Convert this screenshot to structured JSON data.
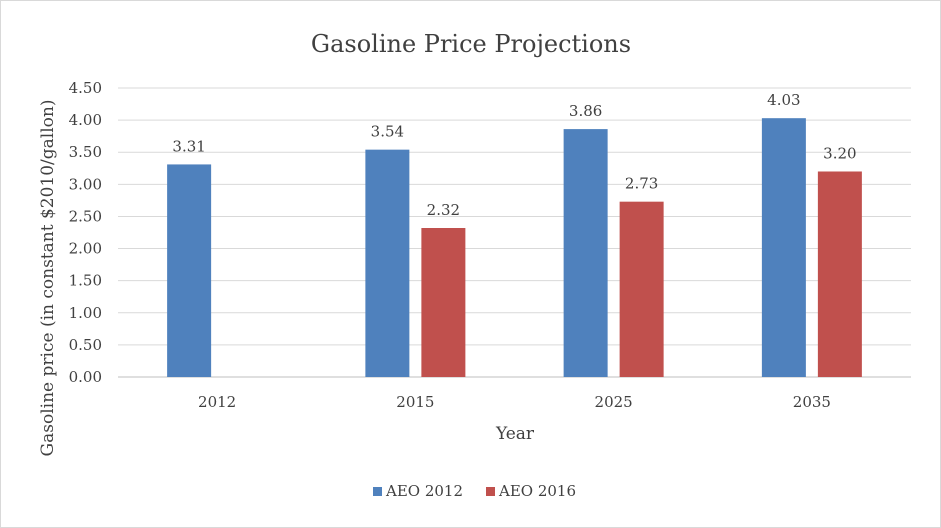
{
  "chart_data": {
    "type": "bar",
    "title": "Gasoline Price Projections",
    "xlabel": "Year",
    "ylabel": "Gasoline price (in constant $2010/gallon)",
    "categories": [
      "2012",
      "2015",
      "2025",
      "2035"
    ],
    "ylim": [
      0,
      4.5
    ],
    "yticks": [
      "0.00",
      "0.50",
      "1.00",
      "1.50",
      "2.00",
      "2.50",
      "3.00",
      "3.50",
      "4.00",
      "4.50"
    ],
    "grid": true,
    "legend_position": "bottom",
    "series": [
      {
        "name": "AEO 2012",
        "color": "#4f81bd",
        "values": [
          3.31,
          3.54,
          3.86,
          4.03
        ],
        "labels": [
          "3.31",
          "3.54",
          "3.86",
          "4.03"
        ]
      },
      {
        "name": "AEO 2016",
        "color": "#c0504d",
        "values": [
          null,
          2.32,
          2.73,
          3.2
        ],
        "labels": [
          null,
          "2.32",
          "2.73",
          "3.20"
        ]
      }
    ]
  }
}
